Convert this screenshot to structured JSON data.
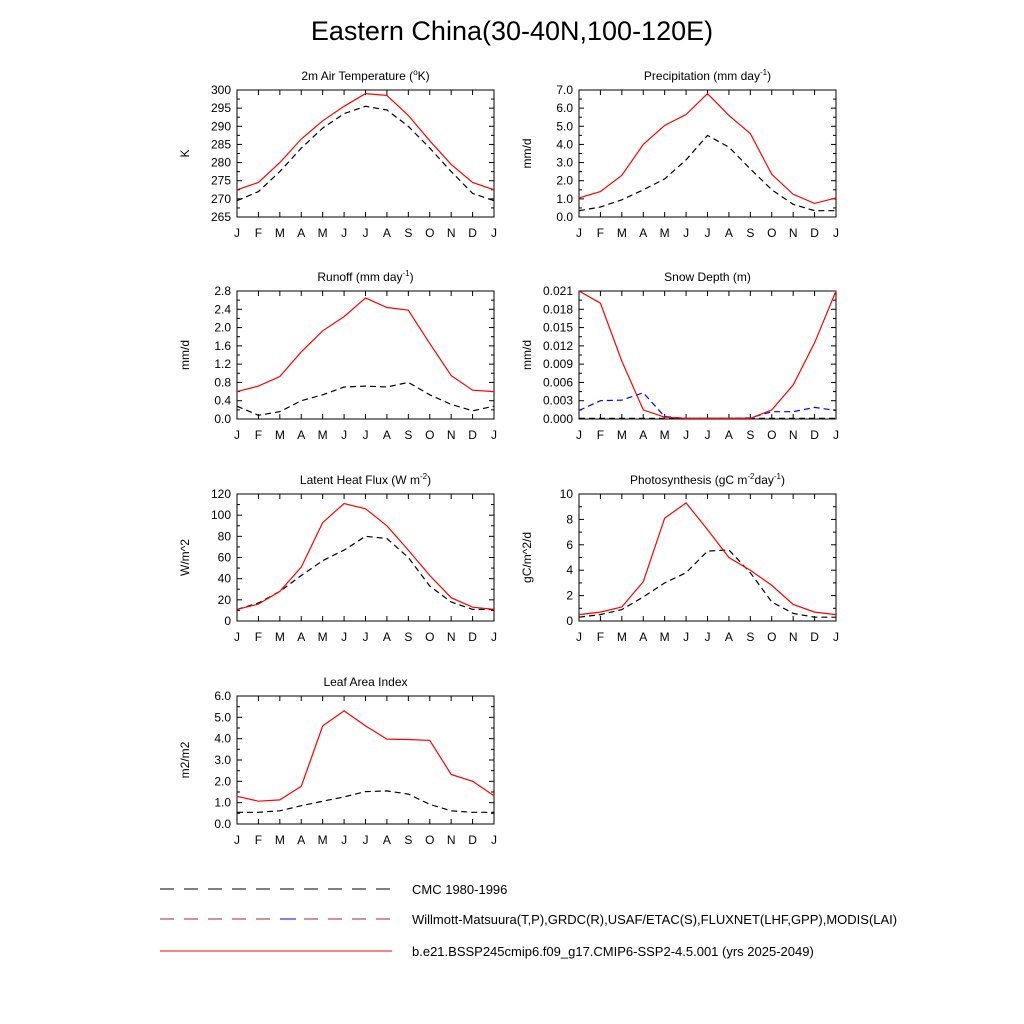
{
  "figure_title": "Eastern China(30-40N,100-120E)",
  "colors": {
    "model": "#ff0000",
    "cmc": "#000000",
    "obs_blue": "#0000ff",
    "obs_red": "#a52a2a"
  },
  "legend": [
    {
      "label": "CMC 1980-1996",
      "style": "dash",
      "color": "#000000"
    },
    {
      "label": "Willmott-Matsuura(T,P),GRDC(R),USAF/ETAC(S),FLUXNET(LHF,GPP),MODIS(LAI)",
      "style": "dash-mixed",
      "color": "#a52a2a"
    },
    {
      "label": "b.e21.BSSP245cmip6.f09_g17.CMIP6-SSP2-4.5.001 (yrs 2025-2049)",
      "style": "solid",
      "color": "#ff0000"
    }
  ],
  "chart_data": [
    {
      "type": "line",
      "title": "2m Air Temperature (",
      "title_sup": "o",
      "title_after": "K)",
      "ylabel": "K",
      "x": [
        "J",
        "F",
        "M",
        "A",
        "M",
        "J",
        "J",
        "A",
        "S",
        "O",
        "N",
        "D",
        "J"
      ],
      "ylim": [
        265,
        300
      ],
      "yticks": [
        265,
        270,
        275,
        280,
        285,
        290,
        295,
        300
      ],
      "ytick_labels": [
        "265",
        "270",
        "275",
        "280",
        "285",
        "290",
        "295",
        "300"
      ],
      "series": [
        {
          "role": "model",
          "color": "#ff0000",
          "dash": "",
          "values": [
            272.5,
            274.5,
            280,
            286.5,
            291.5,
            295.5,
            299,
            298.5,
            293,
            286,
            279.5,
            274.5,
            272.5
          ]
        },
        {
          "role": "cmc",
          "color": "#000000",
          "dash": "6,4",
          "values": [
            269.5,
            272,
            277.5,
            284,
            289.5,
            293.5,
            295.5,
            294.5,
            290,
            284,
            277.5,
            271.5,
            269.5
          ]
        }
      ]
    },
    {
      "type": "line",
      "title": "Precipitation (mm day",
      "title_sup": "-1",
      "title_after": ")",
      "ylabel": "mm/d",
      "x": [
        "J",
        "F",
        "M",
        "A",
        "M",
        "J",
        "J",
        "A",
        "S",
        "O",
        "N",
        "D",
        "J"
      ],
      "ylim": [
        0,
        7
      ],
      "yticks": [
        0,
        1,
        2,
        3,
        4,
        5,
        6,
        7
      ],
      "ytick_labels": [
        "0.0",
        "1.0",
        "2.0",
        "3.0",
        "4.0",
        "5.0",
        "6.0",
        "7.0"
      ],
      "series": [
        {
          "role": "model",
          "color": "#ff0000",
          "dash": "",
          "values": [
            1.05,
            1.4,
            2.3,
            4.0,
            5.05,
            5.65,
            6.8,
            5.6,
            4.6,
            2.35,
            1.25,
            0.75,
            1.05
          ]
        },
        {
          "role": "cmc",
          "color": "#000000",
          "dash": "6,4",
          "values": [
            0.35,
            0.55,
            0.95,
            1.5,
            2.1,
            3.15,
            4.5,
            3.85,
            2.65,
            1.5,
            0.7,
            0.35,
            0.35
          ]
        }
      ]
    },
    {
      "type": "line",
      "title": "Runoff (mm day",
      "title_sup": "-1",
      "title_after": ")",
      "ylabel": "mm/d",
      "x": [
        "J",
        "F",
        "M",
        "A",
        "M",
        "J",
        "J",
        "A",
        "S",
        "O",
        "N",
        "D",
        "J"
      ],
      "ylim": [
        0,
        2.8
      ],
      "yticks": [
        0,
        0.4,
        0.8,
        1.2,
        1.6,
        2.0,
        2.4,
        2.8
      ],
      "ytick_labels": [
        "0.0",
        "0.4",
        "0.8",
        "1.2",
        "1.6",
        "2.0",
        "2.4",
        "2.8"
      ],
      "series": [
        {
          "role": "model",
          "color": "#ff0000",
          "dash": "",
          "values": [
            0.6,
            0.72,
            0.93,
            1.47,
            1.93,
            2.24,
            2.65,
            2.44,
            2.38,
            1.65,
            0.95,
            0.63,
            0.6
          ]
        },
        {
          "role": "cmc",
          "color": "#000000",
          "dash": "6,4",
          "values": [
            0.28,
            0.08,
            0.16,
            0.4,
            0.53,
            0.7,
            0.72,
            0.7,
            0.8,
            0.53,
            0.32,
            0.18,
            0.28
          ]
        }
      ]
    },
    {
      "type": "line",
      "title": "Snow Depth (m)",
      "title_sup": "",
      "title_after": "",
      "ylabel": "mm/d",
      "x": [
        "J",
        "F",
        "M",
        "A",
        "M",
        "J",
        "J",
        "A",
        "S",
        "O",
        "N",
        "D",
        "J"
      ],
      "ylim": [
        0,
        0.021
      ],
      "yticks": [
        0,
        0.003,
        0.006,
        0.009,
        0.012,
        0.015,
        0.018,
        0.021
      ],
      "ytick_labels": [
        "0.000",
        "0.003",
        "0.006",
        "0.009",
        "0.012",
        "0.015",
        "0.018",
        "0.021"
      ],
      "series": [
        {
          "role": "model",
          "color": "#ff0000",
          "dash": "",
          "values": [
            0.021,
            0.019,
            0.0095,
            0.0015,
            0.0003,
            0.0001,
            0.0001,
            0.0001,
            0.0001,
            0.0015,
            0.0056,
            0.0125,
            0.021
          ]
        },
        {
          "role": "obs",
          "color": "#0000ff",
          "dash": "6,4",
          "values": [
            0.0014,
            0.003,
            0.0031,
            0.0043,
            0.0004,
            0.0001,
            0.0001,
            0.0001,
            0.0002,
            0.0012,
            0.0012,
            0.0019,
            0.0014
          ]
        },
        {
          "role": "cmc",
          "color": "#000000",
          "dash": "6,4",
          "values": [
            0.0001,
            0.0001,
            0.0001,
            0.0001,
            0.0001,
            0.0001,
            0.0001,
            0.0001,
            0.0001,
            0.0001,
            0.0001,
            0.0001,
            0.0001
          ]
        }
      ]
    },
    {
      "type": "line",
      "title": "Latent Heat Flux (W m",
      "title_sup": "-2",
      "title_after": ")",
      "ylabel": "W/m^2",
      "x": [
        "J",
        "F",
        "M",
        "A",
        "M",
        "J",
        "J",
        "A",
        "S",
        "O",
        "N",
        "D",
        "J"
      ],
      "ylim": [
        0,
        120
      ],
      "yticks": [
        0,
        20,
        40,
        60,
        80,
        100,
        120
      ],
      "ytick_labels": [
        "0",
        "20",
        "40",
        "60",
        "80",
        "100",
        "120"
      ],
      "series": [
        {
          "role": "model",
          "color": "#ff0000",
          "dash": "",
          "values": [
            11,
            16,
            28,
            51,
            93,
            111,
            106,
            90,
            67,
            43,
            22,
            13,
            11
          ]
        },
        {
          "role": "cmc",
          "color": "#000000",
          "dash": "6,4",
          "values": [
            11,
            17,
            28,
            43,
            57,
            67,
            80,
            78,
            60,
            33,
            18,
            11,
            11
          ]
        }
      ]
    },
    {
      "type": "line",
      "title": "Photosynthesis (gC m",
      "title_sup": "-2",
      "title_after": "day",
      "title_sup2": "-1",
      "title_after2": ")",
      "ylabel": "gC/m^2/d",
      "x": [
        "J",
        "F",
        "M",
        "A",
        "M",
        "J",
        "J",
        "A",
        "S",
        "O",
        "N",
        "D",
        "J"
      ],
      "ylim": [
        0,
        10
      ],
      "yticks": [
        0,
        2,
        4,
        6,
        8,
        10
      ],
      "ytick_labels": [
        "0",
        "2",
        "4",
        "6",
        "8",
        "10"
      ],
      "series": [
        {
          "role": "model",
          "color": "#ff0000",
          "dash": "",
          "values": [
            0.5,
            0.7,
            1.1,
            3.1,
            8.1,
            9.3,
            7.2,
            5.0,
            4.0,
            2.8,
            1.3,
            0.7,
            0.5
          ]
        },
        {
          "role": "cmc",
          "color": "#000000",
          "dash": "6,4",
          "values": [
            0.3,
            0.5,
            0.9,
            1.9,
            3.0,
            3.8,
            5.5,
            5.6,
            3.8,
            1.5,
            0.6,
            0.3,
            0.3
          ]
        }
      ]
    },
    {
      "type": "line",
      "title": "Leaf Area Index",
      "title_sup": "",
      "title_after": "",
      "ylabel": "m2/m2",
      "x": [
        "J",
        "F",
        "M",
        "A",
        "M",
        "J",
        "J",
        "A",
        "S",
        "O",
        "N",
        "D",
        "J"
      ],
      "ylim": [
        0,
        6
      ],
      "yticks": [
        0,
        1,
        2,
        3,
        4,
        5,
        6
      ],
      "ytick_labels": [
        "0.0",
        "1.0",
        "2.0",
        "3.0",
        "4.0",
        "5.0",
        "6.0"
      ],
      "series": [
        {
          "role": "model",
          "color": "#ff0000",
          "dash": "",
          "values": [
            1.3,
            1.07,
            1.13,
            1.77,
            4.6,
            5.3,
            4.6,
            3.98,
            3.96,
            3.92,
            2.32,
            2.0,
            1.32
          ]
        },
        {
          "role": "cmc",
          "color": "#000000",
          "dash": "6,4",
          "values": [
            0.55,
            0.55,
            0.62,
            0.86,
            1.07,
            1.27,
            1.52,
            1.55,
            1.4,
            0.92,
            0.62,
            0.55,
            0.55
          ]
        }
      ]
    }
  ]
}
